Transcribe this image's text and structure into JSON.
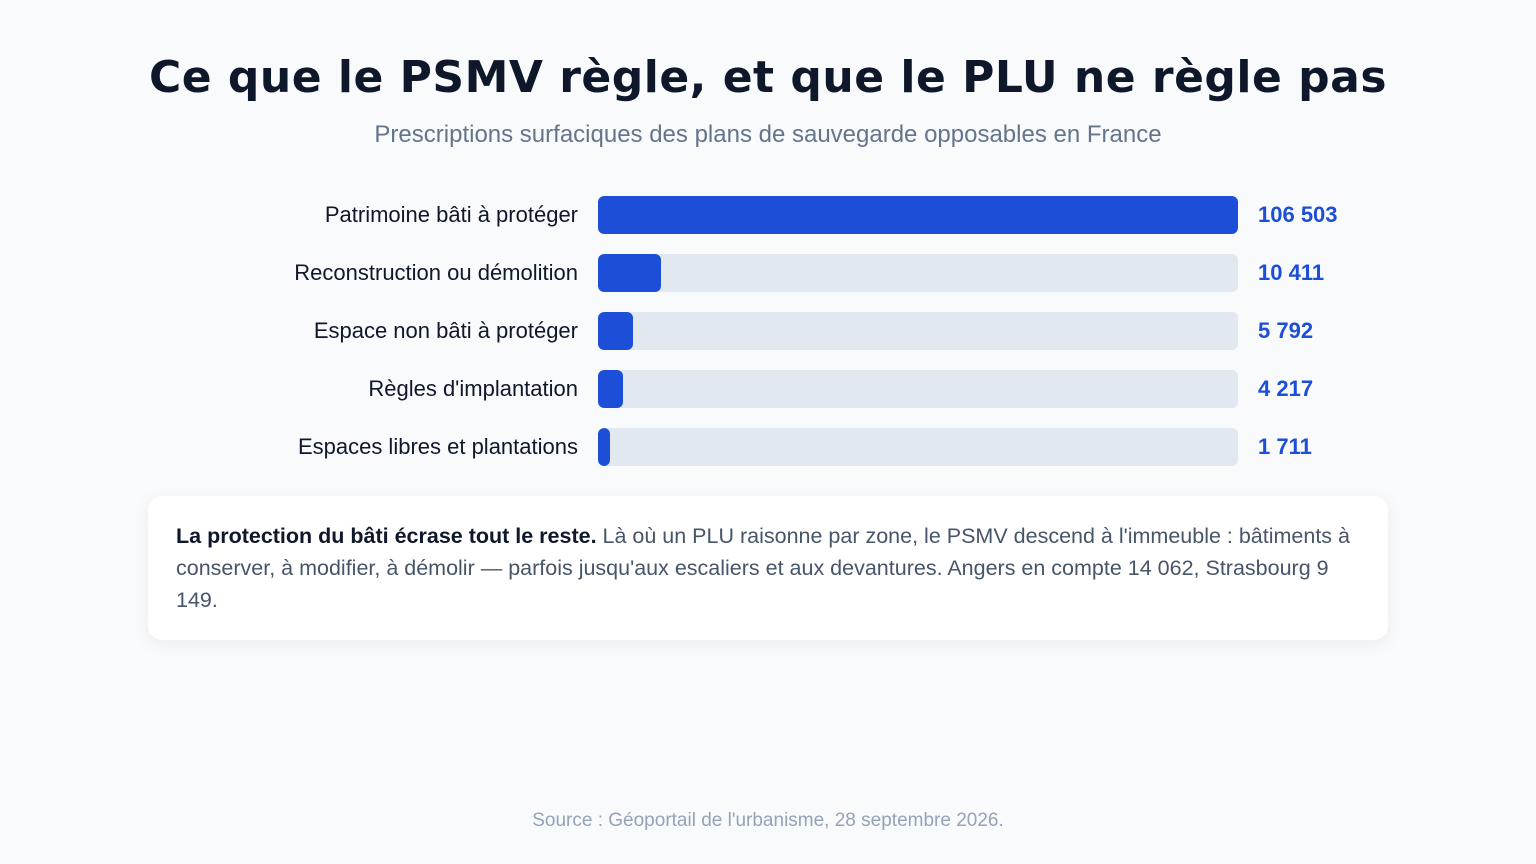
{
  "title": "Ce que le PSMV règle, et que le PLU ne règle pas",
  "subtitle": "Prescriptions surfaciques des plans de sauvegarde opposables en France",
  "chart_data": {
    "type": "bar",
    "orientation": "horizontal",
    "categories": [
      "Patrimoine bâti à protéger",
      "Reconstruction ou démolition",
      "Espace non bâti à protéger",
      "Règles d'implantation",
      "Espaces libres et plantations"
    ],
    "values": [
      106503,
      10411,
      5792,
      4217,
      1711
    ],
    "value_labels": [
      "106 503",
      "10 411",
      "5 792",
      "4 217",
      "1 711"
    ],
    "xlim": [
      0,
      106503
    ],
    "grid": false,
    "bar_color": "#1d4ed8",
    "track_color": "#e2e8f0"
  },
  "note": {
    "lead": "La protection du bâti écrase tout le reste.",
    "body": " Là où un PLU raisonne par zone, le PSMV descend à l'immeuble : bâtiments à conserver, à modifier, à démolir — parfois jusqu'aux escaliers et aux devantures. Angers en compte 14 062, Strasbourg 9 149."
  },
  "source": "Source : Géoportail de l'urbanisme, 28 septembre 2026."
}
